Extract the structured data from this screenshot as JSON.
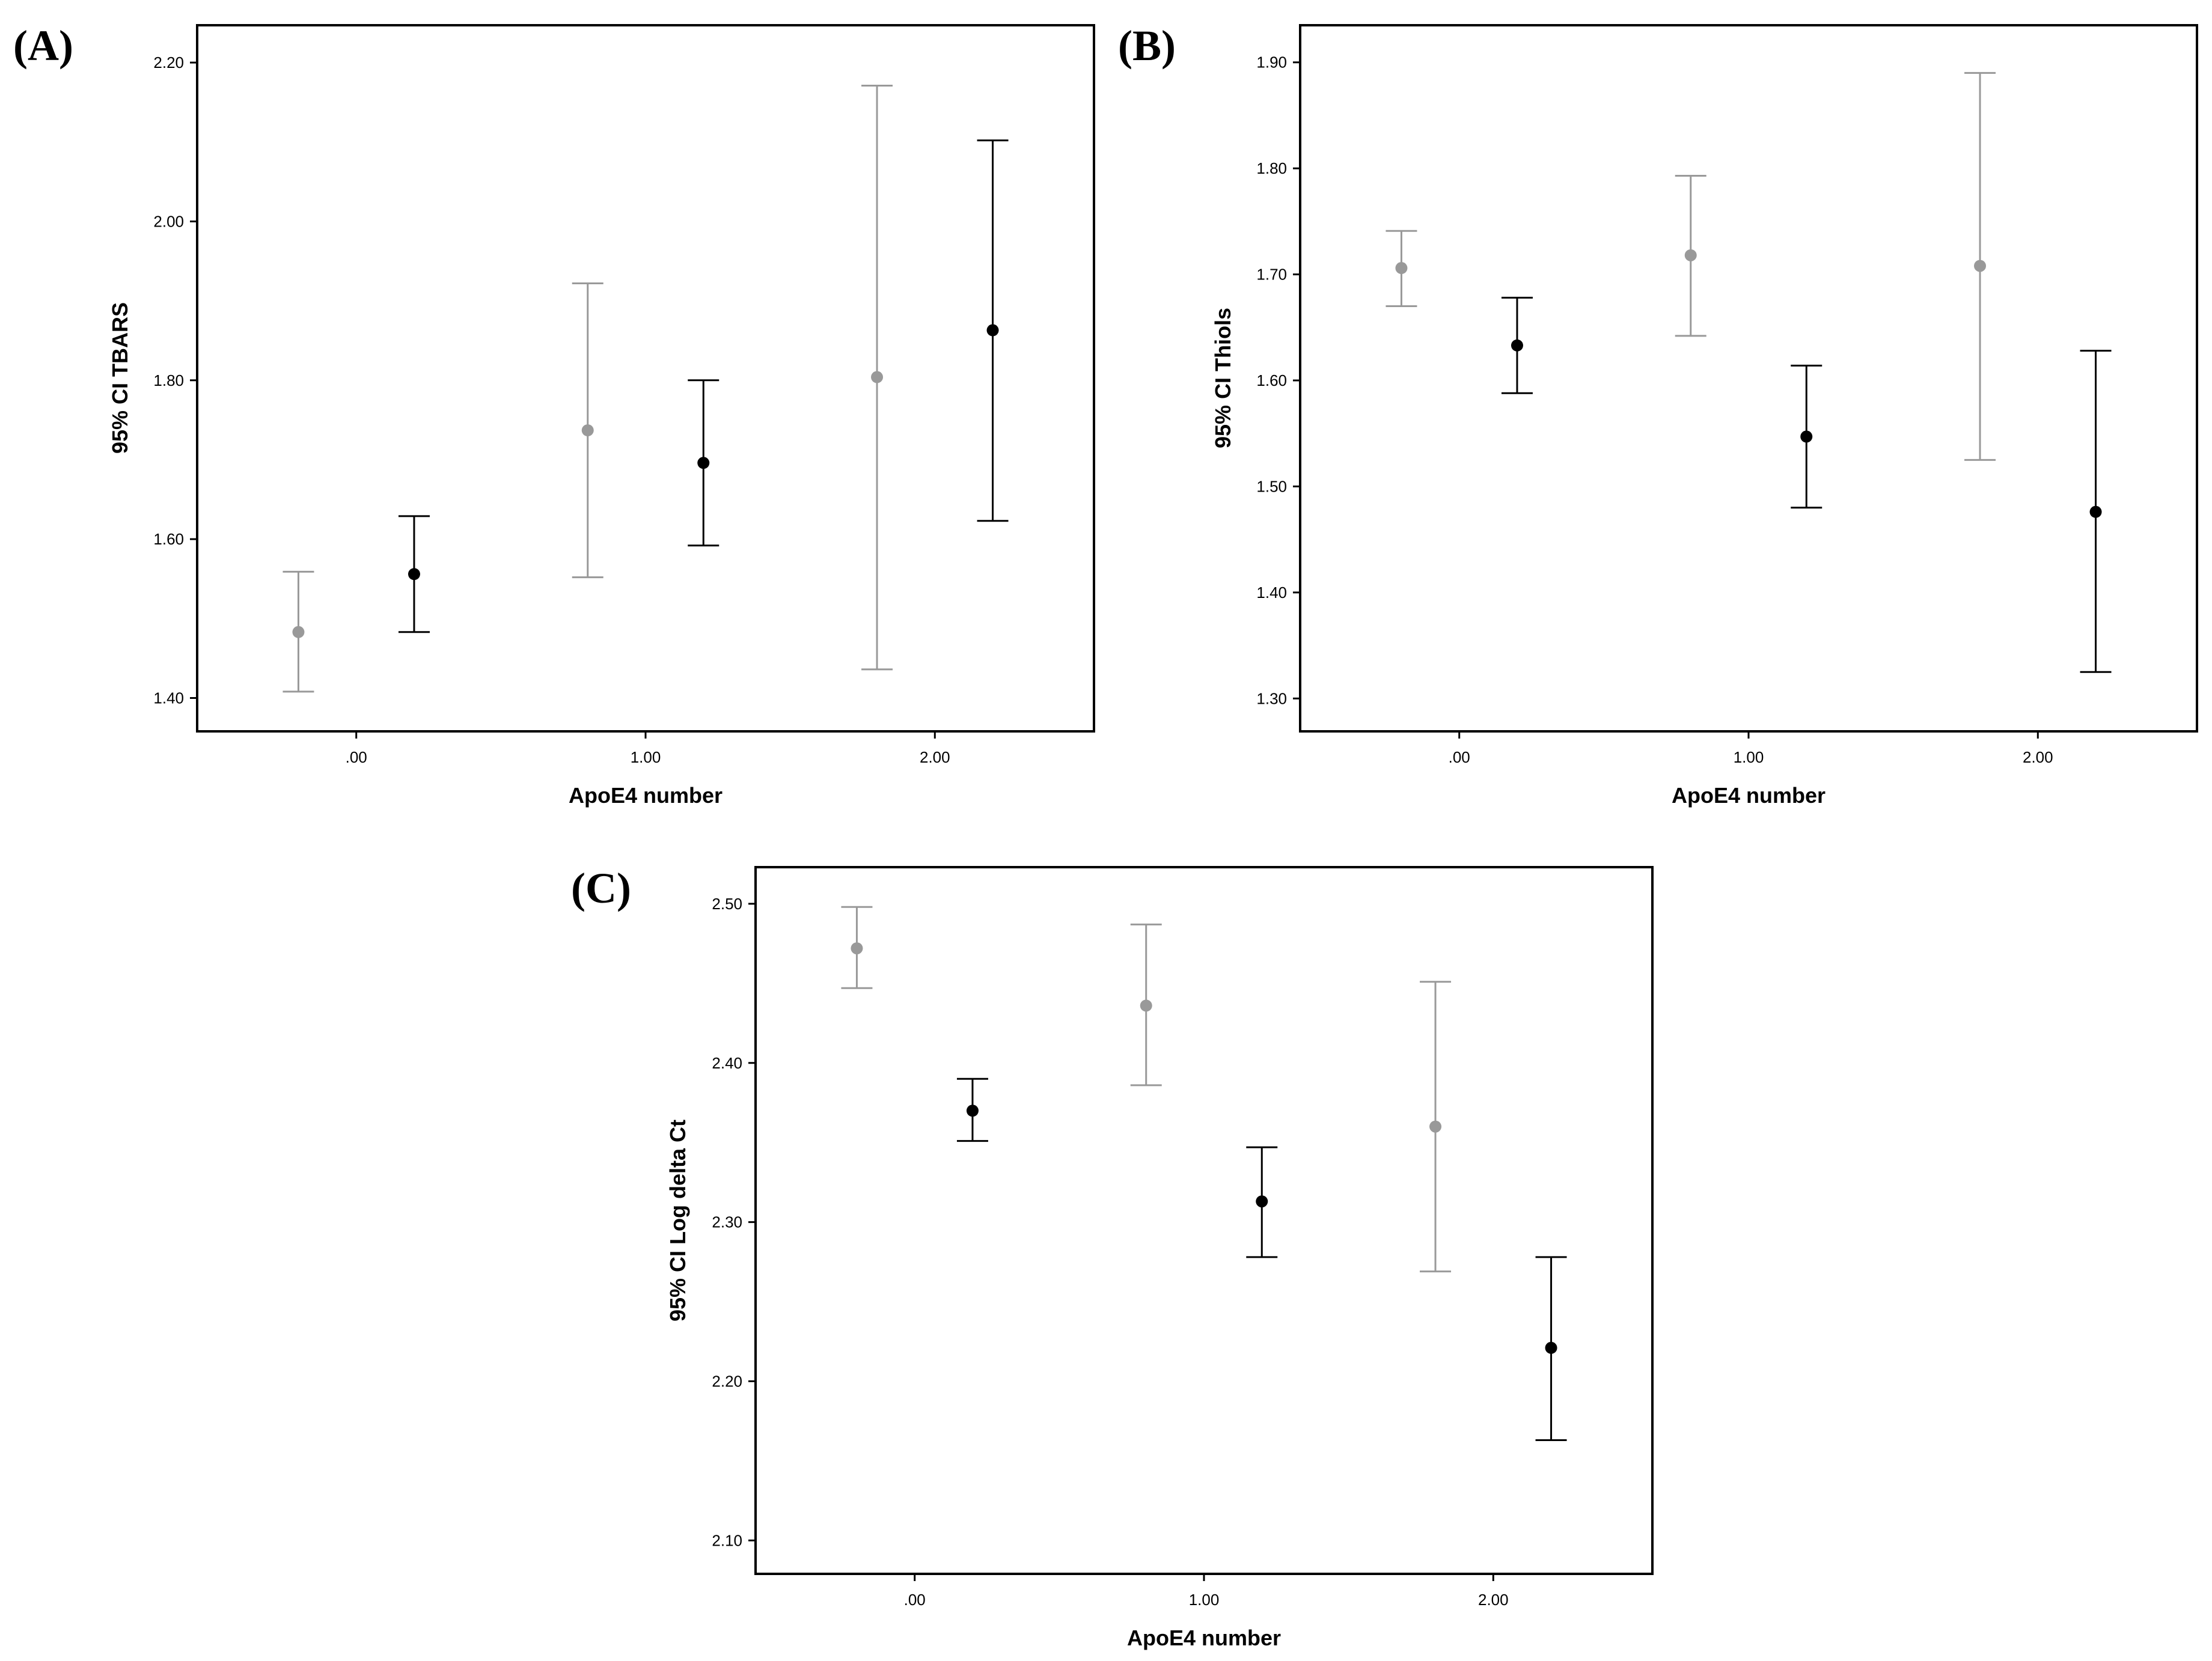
{
  "colors": {
    "group_gray": "#999999",
    "group_black": "#000000",
    "frame": "#000000",
    "background": "#ffffff"
  },
  "chart_data": [
    {
      "type": "errorbar",
      "panel_label": "(A)",
      "xlabel": "ApoE4 number",
      "ylabel": "95% CI TBARS",
      "x_ticks": [
        {
          "value": 0,
          "label": ".00"
        },
        {
          "value": 1,
          "label": "1.00"
        },
        {
          "value": 2,
          "label": "2.00"
        }
      ],
      "y_ticks": [
        {
          "value": 1.4,
          "label": "1.40"
        },
        {
          "value": 1.6,
          "label": "1.60"
        },
        {
          "value": 1.8,
          "label": "1.80"
        },
        {
          "value": 2.0,
          "label": "2.00"
        },
        {
          "value": 2.2,
          "label": "2.20"
        }
      ],
      "xlim": [
        -0.55,
        2.55
      ],
      "ylim": [
        1.358,
        2.247
      ],
      "grid": false,
      "series": [
        {
          "color": "#999999",
          "points": [
            {
              "x": -0.2,
              "mean": 1.483,
              "lower": 1.408,
              "upper": 1.559
            },
            {
              "x": 0.8,
              "mean": 1.737,
              "lower": 1.552,
              "upper": 1.922
            },
            {
              "x": 1.8,
              "mean": 1.804,
              "lower": 1.436,
              "upper": 2.171
            }
          ]
        },
        {
          "color": "#000000",
          "points": [
            {
              "x": 0.2,
              "mean": 1.556,
              "lower": 1.483,
              "upper": 1.629
            },
            {
              "x": 1.2,
              "mean": 1.696,
              "lower": 1.592,
              "upper": 1.8
            },
            {
              "x": 2.2,
              "mean": 1.863,
              "lower": 1.623,
              "upper": 2.102
            }
          ]
        }
      ]
    },
    {
      "type": "errorbar",
      "panel_label": "(B)",
      "xlabel": "ApoE4 number",
      "ylabel": "95% CI Thiols",
      "x_ticks": [
        {
          "value": 0,
          "label": ".00"
        },
        {
          "value": 1,
          "label": "1.00"
        },
        {
          "value": 2,
          "label": "2.00"
        }
      ],
      "y_ticks": [
        {
          "value": 1.3,
          "label": "1.30"
        },
        {
          "value": 1.4,
          "label": "1.40"
        },
        {
          "value": 1.5,
          "label": "1.50"
        },
        {
          "value": 1.6,
          "label": "1.60"
        },
        {
          "value": 1.7,
          "label": "1.70"
        },
        {
          "value": 1.8,
          "label": "1.80"
        },
        {
          "value": 1.9,
          "label": "1.90"
        }
      ],
      "xlim": [
        -0.55,
        2.55
      ],
      "ylim": [
        1.269,
        1.935
      ],
      "grid": false,
      "series": [
        {
          "color": "#999999",
          "points": [
            {
              "x": -0.2,
              "mean": 1.706,
              "lower": 1.67,
              "upper": 1.741
            },
            {
              "x": 0.8,
              "mean": 1.718,
              "lower": 1.642,
              "upper": 1.793
            },
            {
              "x": 1.8,
              "mean": 1.708,
              "lower": 1.525,
              "upper": 1.89
            }
          ]
        },
        {
          "color": "#000000",
          "points": [
            {
              "x": 0.2,
              "mean": 1.633,
              "lower": 1.588,
              "upper": 1.678
            },
            {
              "x": 1.2,
              "mean": 1.547,
              "lower": 1.48,
              "upper": 1.614
            },
            {
              "x": 2.2,
              "mean": 1.476,
              "lower": 1.325,
              "upper": 1.628
            }
          ]
        }
      ]
    },
    {
      "type": "errorbar",
      "panel_label": "(C)",
      "xlabel": "ApoE4 number",
      "ylabel": "95% CI Log delta Ct",
      "x_ticks": [
        {
          "value": 0,
          "label": ".00"
        },
        {
          "value": 1,
          "label": "1.00"
        },
        {
          "value": 2,
          "label": "2.00"
        }
      ],
      "y_ticks": [
        {
          "value": 2.1,
          "label": "2.10"
        },
        {
          "value": 2.2,
          "label": "2.20"
        },
        {
          "value": 2.3,
          "label": "2.30"
        },
        {
          "value": 2.4,
          "label": "2.40"
        },
        {
          "value": 2.5,
          "label": "2.50"
        }
      ],
      "xlim": [
        -0.55,
        2.55
      ],
      "ylim": [
        2.079,
        2.523
      ],
      "grid": false,
      "series": [
        {
          "color": "#999999",
          "points": [
            {
              "x": -0.2,
              "mean": 2.472,
              "lower": 2.447,
              "upper": 2.498
            },
            {
              "x": 0.8,
              "mean": 2.436,
              "lower": 2.386,
              "upper": 2.487
            },
            {
              "x": 1.8,
              "mean": 2.36,
              "lower": 2.269,
              "upper": 2.451
            }
          ]
        },
        {
          "color": "#000000",
          "points": [
            {
              "x": 0.2,
              "mean": 2.37,
              "lower": 2.351,
              "upper": 2.39
            },
            {
              "x": 1.2,
              "mean": 2.313,
              "lower": 2.278,
              "upper": 2.347
            },
            {
              "x": 2.2,
              "mean": 2.221,
              "lower": 2.163,
              "upper": 2.278
            }
          ]
        }
      ]
    }
  ]
}
